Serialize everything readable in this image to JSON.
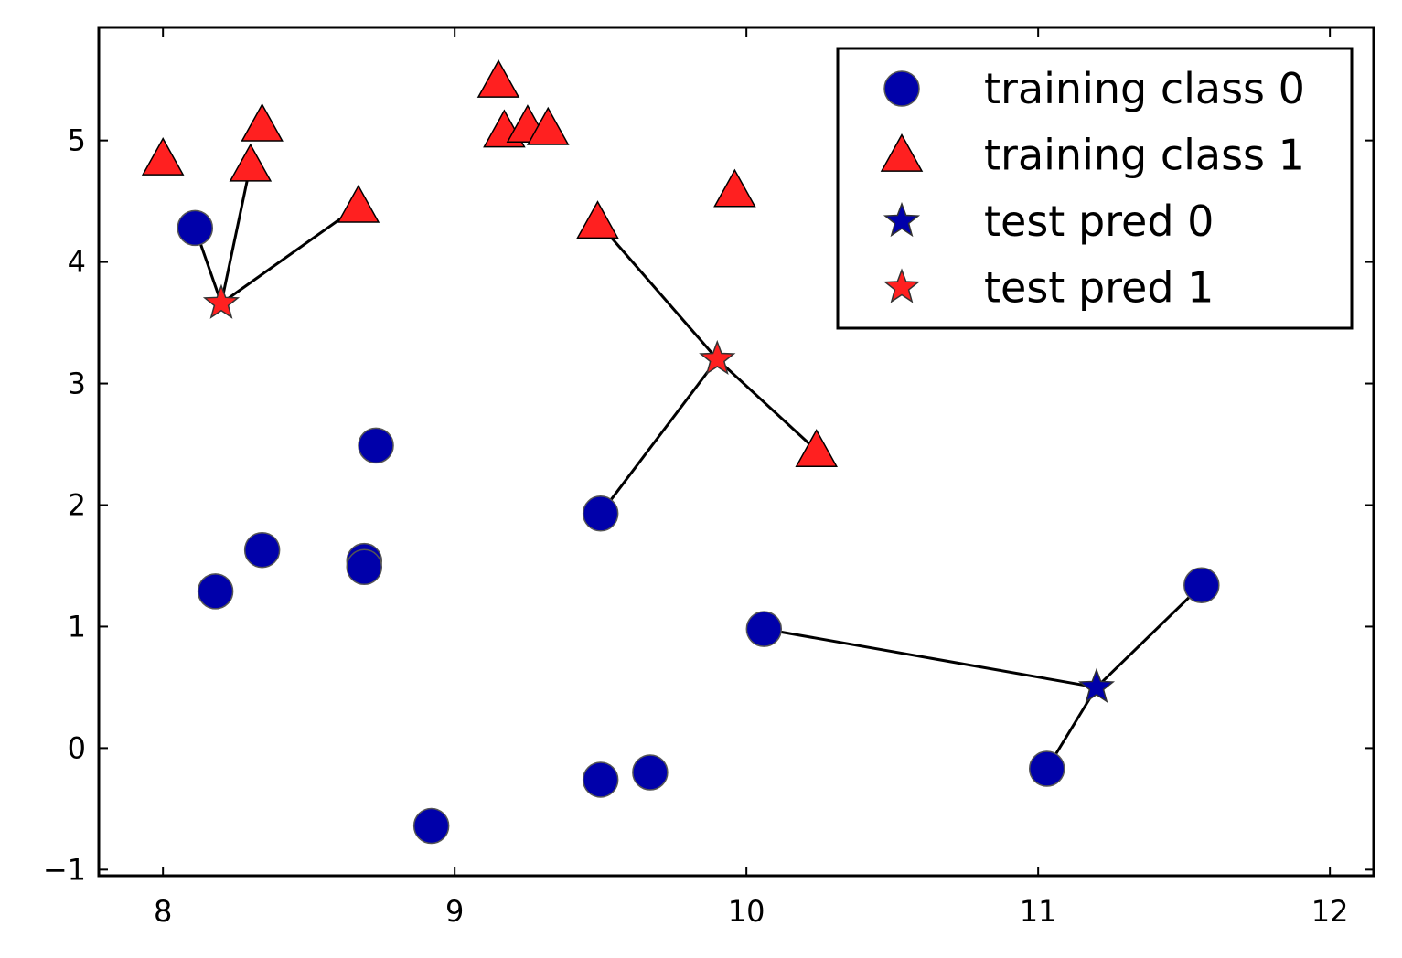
{
  "chart_data": {
    "type": "scatter",
    "title": "",
    "xlabel": "",
    "ylabel": "",
    "xlim": [
      7.78,
      12.15
    ],
    "ylim": [
      -1.05,
      5.93
    ],
    "xticks": [
      8,
      9,
      10,
      11,
      12
    ],
    "yticks": [
      -1,
      0,
      1,
      2,
      3,
      4,
      5
    ],
    "xtick_labels": [
      "8",
      "9",
      "10",
      "11",
      "12"
    ],
    "ytick_labels": [
      "−1",
      "0",
      "1",
      "2",
      "3",
      "4",
      "5"
    ],
    "grid": false,
    "legend_position": "top-right",
    "colors": {
      "class0": "#0000aa",
      "class1": "#ff2020",
      "edge": "#555555",
      "line": "#000000"
    },
    "series": [
      {
        "name": "training class 0",
        "marker": "circle",
        "points": [
          [
            8.11,
            4.28
          ],
          [
            8.18,
            1.29
          ],
          [
            8.34,
            1.63
          ],
          [
            8.69,
            1.54
          ],
          [
            8.69,
            1.49
          ],
          [
            8.73,
            2.49
          ],
          [
            8.92,
            -0.64
          ],
          [
            9.5,
            1.93
          ],
          [
            9.5,
            -0.26
          ],
          [
            9.67,
            -0.2
          ],
          [
            10.06,
            0.98
          ],
          [
            11.03,
            -0.17
          ],
          [
            11.56,
            1.34
          ]
        ]
      },
      {
        "name": "training class 1",
        "marker": "triangle",
        "points": [
          [
            8.0,
            4.85
          ],
          [
            8.3,
            4.8
          ],
          [
            8.34,
            5.13
          ],
          [
            8.67,
            4.46
          ],
          [
            9.15,
            5.49
          ],
          [
            9.17,
            5.08
          ],
          [
            9.25,
            5.12
          ],
          [
            9.32,
            5.1
          ],
          [
            9.49,
            4.33
          ],
          [
            9.96,
            4.59
          ],
          [
            10.24,
            2.45
          ]
        ]
      },
      {
        "name": "test pred 0",
        "marker": "star",
        "points": [
          [
            11.2,
            0.5
          ]
        ]
      },
      {
        "name": "test pred 1",
        "marker": "star",
        "points": [
          [
            8.2,
            3.66
          ],
          [
            9.9,
            3.2
          ]
        ]
      }
    ],
    "neighbor_lines": [
      [
        [
          8.2,
          3.66
        ],
        [
          8.11,
          4.28
        ]
      ],
      [
        [
          8.2,
          3.66
        ],
        [
          8.3,
          4.8
        ]
      ],
      [
        [
          8.2,
          3.66
        ],
        [
          8.67,
          4.46
        ]
      ],
      [
        [
          9.9,
          3.2
        ],
        [
          9.49,
          4.33
        ]
      ],
      [
        [
          9.9,
          3.2
        ],
        [
          10.24,
          2.45
        ]
      ],
      [
        [
          9.9,
          3.2
        ],
        [
          9.5,
          1.93
        ]
      ],
      [
        [
          11.2,
          0.5
        ],
        [
          10.06,
          0.98
        ]
      ],
      [
        [
          11.2,
          0.5
        ],
        [
          11.56,
          1.34
        ]
      ],
      [
        [
          11.2,
          0.5
        ],
        [
          11.03,
          -0.17
        ]
      ]
    ]
  }
}
